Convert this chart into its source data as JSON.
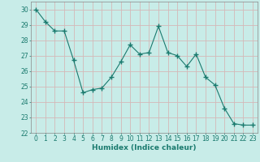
{
  "x": [
    0,
    1,
    2,
    3,
    4,
    5,
    6,
    7,
    8,
    9,
    10,
    11,
    12,
    13,
    14,
    15,
    16,
    17,
    18,
    19,
    20,
    21,
    22,
    23
  ],
  "y": [
    30.0,
    29.2,
    28.6,
    28.6,
    26.7,
    24.6,
    24.8,
    24.9,
    25.6,
    26.6,
    27.7,
    27.1,
    27.2,
    28.9,
    27.2,
    27.0,
    26.3,
    27.1,
    25.6,
    25.1,
    23.6,
    22.6,
    22.5,
    22.5
  ],
  "line_color": "#1a7a6e",
  "marker": "+",
  "marker_size": 4,
  "marker_lw": 1.0,
  "bg_color": "#c8ece8",
  "grid_color": "#d4b8b8",
  "xlabel": "Humidex (Indice chaleur)",
  "ylim": [
    22,
    30.5
  ],
  "xlim": [
    -0.5,
    23.5
  ],
  "yticks": [
    22,
    23,
    24,
    25,
    26,
    27,
    28,
    29,
    30
  ],
  "xticks": [
    0,
    1,
    2,
    3,
    4,
    5,
    6,
    7,
    8,
    9,
    10,
    11,
    12,
    13,
    14,
    15,
    16,
    17,
    18,
    19,
    20,
    21,
    22,
    23
  ],
  "xlabel_fontsize": 6.5,
  "tick_fontsize": 5.5,
  "line_width": 0.8
}
